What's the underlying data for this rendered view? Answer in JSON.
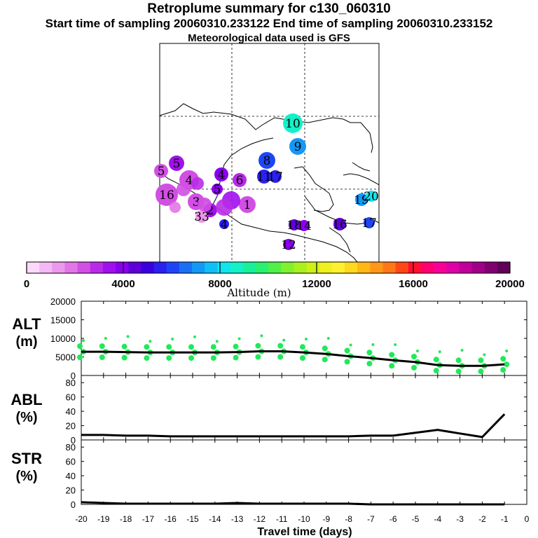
{
  "header": {
    "title": "Retroplume summary for c130_060310",
    "sampling": "Start time of sampling 20060310.233122     End time of sampling 20060310.233152",
    "met": "Meteorological data used is GFS"
  },
  "colorbar": {
    "label": "Altitude (m)",
    "ticks": [
      "0",
      "4000",
      "8000",
      "12000",
      "16000",
      "20000"
    ],
    "colors": [
      "#fbd9fb",
      "#f4b9f4",
      "#ec98ec",
      "#e276e6",
      "#d24fe4",
      "#b92be8",
      "#a010ec",
      "#8a00ee",
      "#5f00d8",
      "#3a00e0",
      "#2a20f0",
      "#1e45f5",
      "#1a70f5",
      "#1498f5",
      "#10bff5",
      "#10e4f0",
      "#14f0c8",
      "#18f098",
      "#28f070",
      "#50f048",
      "#80f030",
      "#a8f020",
      "#cdf018",
      "#eef020",
      "#fff030",
      "#ffd820",
      "#ffb818",
      "#ff9818",
      "#ff7818",
      "#ff4818",
      "#ff1030",
      "#ff0070",
      "#f80098",
      "#e000a8",
      "#c00098",
      "#a00088",
      "#800070",
      "#600058"
    ]
  },
  "map": {
    "markers": [
      {
        "label": "10",
        "alt": 8800
      },
      {
        "label": "9",
        "alt": 7100
      },
      {
        "label": "8",
        "alt": 6000
      },
      {
        "label": "11",
        "alt": 5400
      },
      {
        "label": "17",
        "alt": 5400
      },
      {
        "label": "4",
        "alt": 3800
      },
      {
        "label": "5",
        "alt": 3400
      },
      {
        "label": "5",
        "alt": 2600
      },
      {
        "label": "4",
        "alt": 2400
      },
      {
        "label": "6",
        "alt": 3000
      },
      {
        "label": "5",
        "alt": 3800
      },
      {
        "label": "1",
        "alt": 2600
      },
      {
        "label": "3",
        "alt": 2600
      },
      {
        "label": "2",
        "alt": 3200
      },
      {
        "label": "16",
        "alt": 2600
      },
      {
        "label": "33",
        "alt": 1400
      },
      {
        "label": "4",
        "alt": 5600
      },
      {
        "label": "18",
        "alt": 4500
      },
      {
        "label": "14",
        "alt": 4200
      },
      {
        "label": "16",
        "alt": 4500
      },
      {
        "label": "17",
        "alt": 6200
      },
      {
        "label": "19",
        "alt": 7200
      },
      {
        "label": "20",
        "alt": 8200
      },
      {
        "label": "12",
        "alt": 4000
      }
    ]
  },
  "chart_data": [
    {
      "type": "line",
      "title": "ALT (m)",
      "ylabel": "ALT (m)",
      "ylim": [
        0,
        20000
      ],
      "yticks": [
        "0",
        "5000",
        "10000",
        "15000",
        "20000"
      ],
      "x": [
        -20,
        -19,
        -18,
        -17,
        -16,
        -15,
        -14,
        -13,
        -12,
        -11,
        -10,
        -9,
        -8,
        -7,
        -6,
        -5,
        -4,
        -3,
        -2,
        -1
      ],
      "values": [
        6400,
        6400,
        6300,
        6200,
        6200,
        6200,
        6200,
        6300,
        6500,
        6500,
        6200,
        5800,
        5200,
        4700,
        4100,
        3600,
        2800,
        2600,
        2600,
        3000
      ]
    },
    {
      "type": "line",
      "title": "ABL (%)",
      "ylabel": "ABL (%)",
      "ylim": [
        0,
        90
      ],
      "yticks": [
        "0",
        "20",
        "40",
        "60",
        "80"
      ],
      "x": [
        -20,
        -19,
        -18,
        -17,
        -16,
        -15,
        -14,
        -13,
        -12,
        -11,
        -10,
        -9,
        -8,
        -7,
        -6,
        -5,
        -4,
        -3,
        -2,
        -1
      ],
      "values": [
        7,
        7,
        6,
        6,
        5,
        5,
        5,
        5,
        5,
        5,
        5,
        5,
        5,
        6,
        6,
        10,
        14,
        9,
        4,
        36
      ]
    },
    {
      "type": "line",
      "title": "STR (%)",
      "ylabel": "STR (%)",
      "ylim": [
        0,
        90
      ],
      "yticks": [
        "0",
        "20",
        "40",
        "60",
        "80"
      ],
      "x": [
        -20,
        -19,
        -18,
        -17,
        -16,
        -15,
        -14,
        -13,
        -12,
        -11,
        -10,
        -9,
        -8,
        -7,
        -6,
        -5,
        -4,
        -3,
        -2,
        -1
      ],
      "values": [
        3,
        2,
        1,
        1,
        1,
        1,
        1,
        2,
        1,
        1,
        1,
        1,
        1,
        0,
        0,
        0,
        0,
        0,
        0,
        0
      ]
    }
  ],
  "xaxis": {
    "label": "Travel time (days)",
    "ticks": [
      "-20",
      "-19",
      "-18",
      "-17",
      "-16",
      "-15",
      "-14",
      "-13",
      "-12",
      "-11",
      "-10",
      "-9",
      "-8",
      "-7",
      "-6",
      "-5",
      "-4",
      "-3",
      "-2",
      "-1",
      "0"
    ]
  },
  "panel_labels": {
    "alt": [
      "ALT",
      "(m)"
    ],
    "abl": [
      "ABL",
      "(%)"
    ],
    "str": [
      "STR",
      "(%)"
    ]
  }
}
